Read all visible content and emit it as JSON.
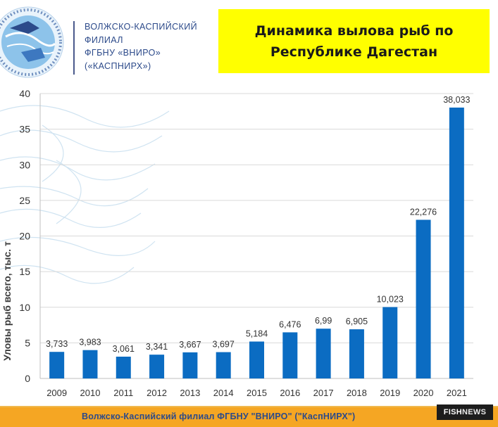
{
  "header": {
    "org_lines": [
      "ВОЛЖСКО-КАСПИЙСКИЙ",
      "ФИЛИАЛ",
      "ФГБНУ «ВНИРО»",
      "(«КАСПНИРХ»)"
    ],
    "title": "Динамика вылова рыб по\nРеспублике Дагестан"
  },
  "footer": {
    "text": "Волжско-Каспийский филиал ФГБНУ \"ВНИРО\" (\"КаспНИРХ\")",
    "watermark_fish": "FISH",
    "watermark_news": "NEWS"
  },
  "colors": {
    "bar": "#0b6cc2",
    "title_bg": "#ffff00",
    "footer_bg": "#f5a623",
    "org_text": "#2c4a8a"
  },
  "chart_data": {
    "type": "bar",
    "title": "Динамика вылова рыб по Республике Дагестан",
    "ylabel": "Уловы рыб всего, тыс. т",
    "xlabel": "",
    "ylim": [
      0,
      40
    ],
    "yticks": [
      0,
      5,
      10,
      15,
      20,
      25,
      30,
      35,
      40
    ],
    "grid": true,
    "categories": [
      "2009",
      "2010",
      "2011",
      "2012",
      "2013",
      "2014",
      "2015",
      "2016",
      "2017",
      "2018",
      "2019",
      "2020",
      "2021"
    ],
    "values": [
      3.733,
      3.983,
      3.061,
      3.341,
      3.667,
      3.697,
      5.184,
      6.476,
      6.99,
      6.905,
      10.023,
      22.276,
      38.033
    ],
    "value_labels": [
      "3,733",
      "3,983",
      "3,061",
      "3,341",
      "3,667",
      "3,697",
      "5,184",
      "6,476",
      "6,99",
      "6,905",
      "10,023",
      "22,276",
      "38,033"
    ]
  }
}
